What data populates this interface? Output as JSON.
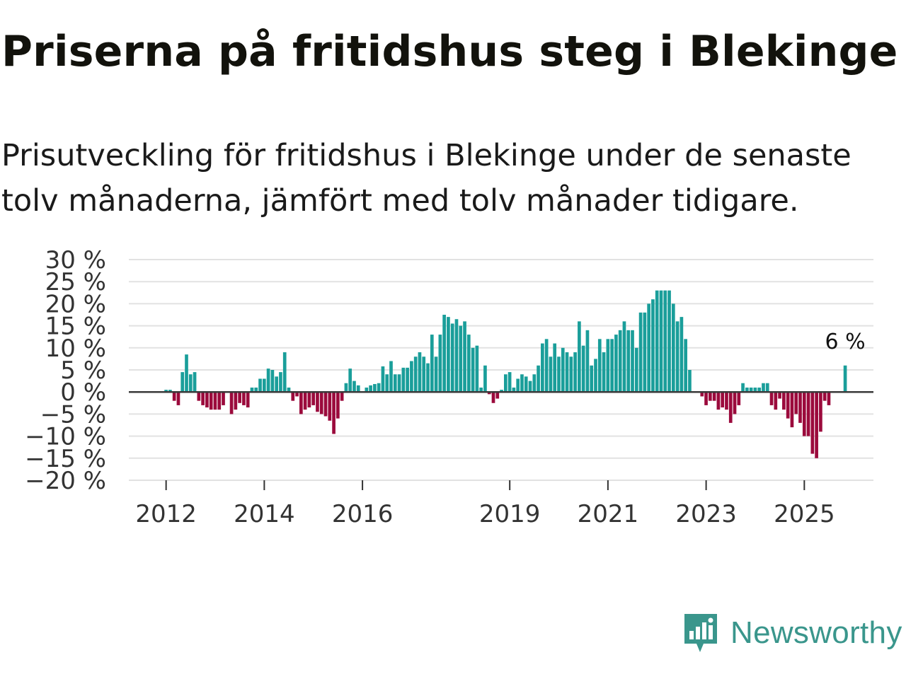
{
  "header": {
    "title": "Priserna på fritidshus steg i Blekinge",
    "subtitle": "Prisutveckling för fritidshus i Blekinge under de senaste tolv månaderna, jämfört med tolv månader tidigare."
  },
  "chart_data": {
    "type": "bar",
    "title": "Priserna på fritidshus steg i Blekinge",
    "subtitle": "Prisutveckling för fritidshus i Blekinge under de senaste tolv månaderna, jämfört med tolv månader tidigare.",
    "xlabel": "",
    "ylabel": "",
    "ylim": [
      -20,
      30
    ],
    "y_ticks": [
      30,
      25,
      20,
      15,
      10,
      5,
      0,
      -5,
      -10,
      -15,
      -20
    ],
    "y_tick_labels": [
      "30 %",
      "25 %",
      "20 %",
      "15 %",
      "10 %",
      "5 %",
      "0 %",
      "−5 %",
      "−10 %",
      "−15 %",
      "−20 %"
    ],
    "x_ticks": [
      "2012",
      "2014",
      "2016",
      "2019",
      "2021",
      "2023",
      "2025"
    ],
    "start": "2011-01",
    "frequency": "monthly",
    "positive_color": "#1a9e9a",
    "negative_color": "#9b0a3c",
    "grid": true,
    "annotation": {
      "label": "6 %",
      "value": 6
    },
    "values": [
      0,
      0,
      0,
      0,
      0,
      0,
      0,
      0,
      0,
      0,
      0,
      0,
      0.5,
      0.5,
      -2,
      -3,
      4.5,
      8.5,
      4,
      4.5,
      -2,
      -3,
      -3.5,
      -4,
      -4,
      -4,
      -3,
      0,
      -5,
      -4,
      -2.5,
      -3,
      -3.5,
      1,
      1,
      3,
      3,
      5.3,
      5,
      3.5,
      4.5,
      9,
      1,
      -2,
      -1,
      -5,
      -4,
      -3.5,
      -3,
      -4.5,
      -5,
      -5.5,
      -6.5,
      -9.5,
      -6,
      -2,
      2,
      5.3,
      2.5,
      1.5,
      0,
      1,
      1.5,
      1.8,
      2,
      5.8,
      4,
      7,
      4,
      4,
      5.5,
      5.5,
      7,
      8,
      9,
      8,
      6.5,
      13,
      8,
      13,
      17.5,
      17,
      15.5,
      16.5,
      15,
      16,
      13,
      10,
      10.5,
      1,
      6,
      -0.5,
      -2.5,
      -1.5,
      0.5,
      4,
      4.5,
      1,
      3,
      4,
      3.5,
      2.5,
      4,
      6,
      11,
      12,
      8,
      11,
      8,
      10,
      9,
      8,
      9,
      16,
      10.5,
      14,
      6,
      7.5,
      12,
      9,
      12,
      12,
      13,
      14,
      16,
      14,
      14,
      10,
      18,
      18,
      20,
      21,
      23,
      23,
      23,
      23,
      20,
      16,
      17,
      12,
      5,
      0,
      0,
      -1,
      -3,
      -2,
      -2,
      -4,
      -3.5,
      -4,
      -7,
      -5,
      -3,
      2,
      1,
      1,
      1,
      1,
      2,
      2,
      -3,
      -4,
      -1.5,
      -4,
      -6,
      -8,
      -5,
      -7,
      -10,
      -10,
      -14,
      -15,
      -9,
      -2,
      -3,
      0,
      0,
      0,
      6
    ]
  },
  "brand": {
    "name": "Newsworthy",
    "color": "#3a968c",
    "icon": "bar-chart-speech-bubble-icon"
  }
}
